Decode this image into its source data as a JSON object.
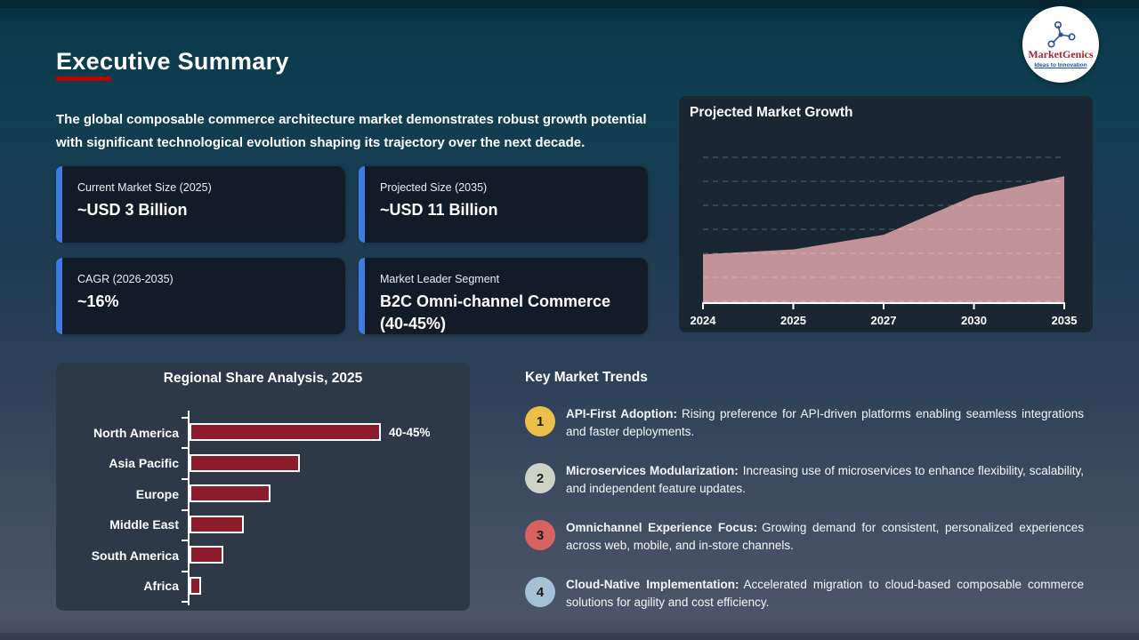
{
  "slide": {
    "title": "Executive Summary",
    "intro": "The global composable commerce architecture market demonstrates robust growth potential with significant technological evolution shaping its trajectory over the next decade."
  },
  "logo": {
    "name": "MarketGenics",
    "tagline": "Ideas to Innovation"
  },
  "stats": [
    {
      "label": "Current Market Size (2025)",
      "value": "~USD 3 Billion"
    },
    {
      "label": "Projected Size (2035)",
      "value": "~USD 11 Billion"
    },
    {
      "label": "CAGR (2026-2035)",
      "value": "~16%"
    },
    {
      "label": "Market Leader Segment",
      "value": "B2C Omni-channel Commerce (40-45%)"
    }
  ],
  "trends": {
    "heading": "Key Market Trends",
    "items": [
      {
        "num": "1",
        "color": "#ecbf4b",
        "title": "API-First Adoption:",
        "text": "Rising preference for API-driven platforms enabling seamless integrations and faster deployments."
      },
      {
        "num": "2",
        "color": "#ced3c6",
        "title": "Microservices Modularization:",
        "text": "Increasing use of microservices to enhance flexibility, scalability, and independent feature updates."
      },
      {
        "num": "3",
        "color": "#d8625f",
        "title": "Omnichannel Experience Focus:",
        "text": "Growing demand for consistent, personalized experiences across web, mobile, and in-store channels."
      },
      {
        "num": "4",
        "color": "#a4c1d6",
        "title": "Cloud-Native Implementation:",
        "text": "Accelerated migration to cloud-based composable commerce solutions for agility and cost efficiency."
      }
    ]
  },
  "chart_data": [
    {
      "type": "area",
      "title": "Projected Market Growth",
      "x_tick_labels": [
        "2024",
        "2025",
        "2027",
        "2030",
        "2035"
      ],
      "x": [
        2024,
        2025,
        2027,
        2030,
        2035
      ],
      "values": [
        3,
        3.5,
        5,
        9,
        11
      ],
      "ylim": [
        0,
        12
      ],
      "grid": "horizontal dashed, no y tick labels",
      "fill_color": "#c2929a"
    },
    {
      "type": "bar",
      "orientation": "horizontal",
      "title": "Regional Share Analysis, 2025",
      "categories": [
        "North America",
        "Asia Pacific",
        "Europe",
        "Middle East",
        "South America",
        "Africa"
      ],
      "values": [
        42.5,
        24.5,
        18,
        12,
        7.5,
        2.5
      ],
      "value_labels": [
        "40-45%",
        "",
        "",
        "",
        "",
        ""
      ],
      "xlim": [
        0,
        50
      ],
      "bar_color": "#8c1c2c",
      "bar_border_color": "#ffffff"
    }
  ],
  "colors": {
    "accent_blue": "#3d7be0",
    "underline_red": "#c00000",
    "card_bg": "#121c28",
    "growth_panel_bg": "#1a2733",
    "regional_panel_bg": "#2d3947",
    "area_fill": "#c2929a",
    "bar_red": "#8c1c2c",
    "bg_top": "#093a4a",
    "bg_bottom": "#4c5568"
  }
}
